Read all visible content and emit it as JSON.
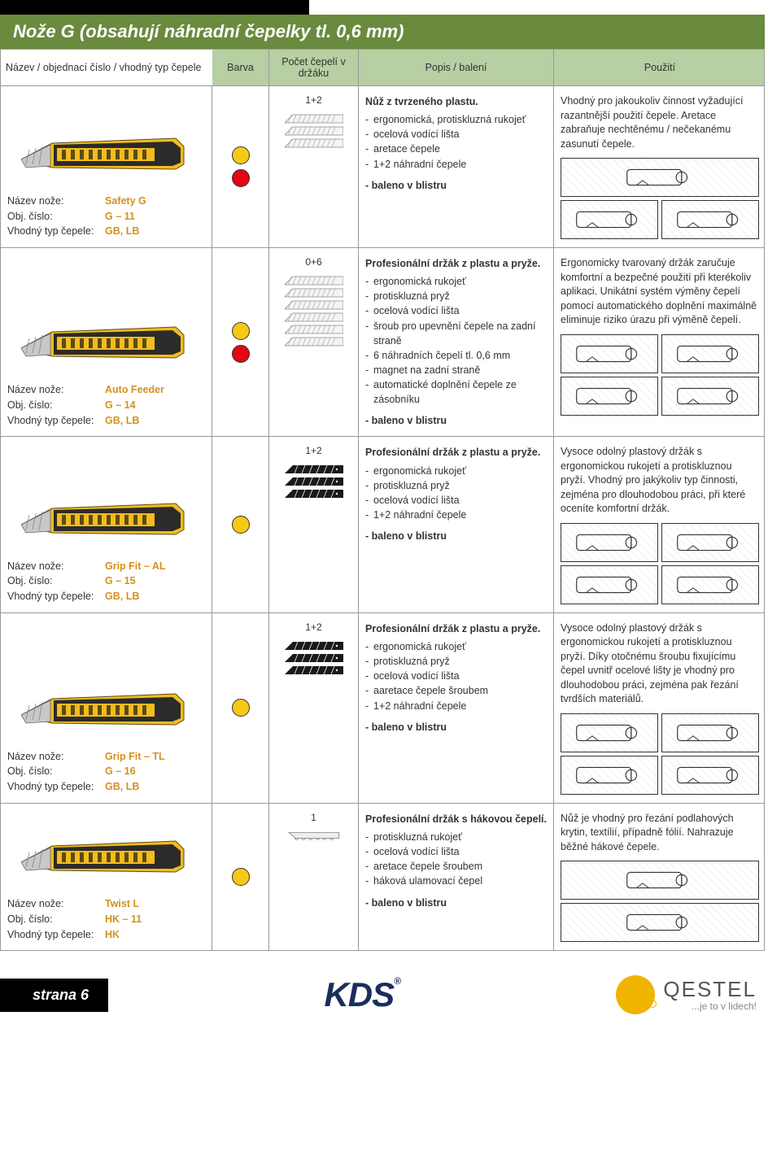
{
  "title": "Nože G (obsahují náhradní čepelky tl. 0,6 mm)",
  "headers": {
    "name": "Název / objednací číslo / vhodný typ čepele",
    "color": "Barva",
    "blades": "Počet čepelí v držáku",
    "desc": "Popis / balení",
    "use": "Použití"
  },
  "labels": {
    "name": "Název nože:",
    "code": "Obj. číslo:",
    "blade": "Vhodný typ čepele:"
  },
  "products": [
    {
      "name": "Safety G",
      "code": "G – 11",
      "bladeType": "GB, LB",
      "colors": [
        "#f6c915",
        "#e30613"
      ],
      "bladeCount": "1+2",
      "bladeStyle": "hatched",
      "bladeRows": 3,
      "descTitle": "Nůž z tvrzeného plastu.",
      "descItems": [
        "ergonomická, protiskluzná rukojeť",
        "ocelová vodící lišta",
        "aretace čepele",
        "1+2 náhradní čepele"
      ],
      "packed": "- baleno v blistru",
      "useText": "Vhodný pro jakoukoliv činnost vyžadující razantnější použití čepele. Aretace zabraňuje nechtěnému / nečekanému zasunutí čepele.",
      "diagramStyle": "one-two"
    },
    {
      "name": "Auto Feeder",
      "code": "G – 14",
      "bladeType": "GB, LB",
      "colors": [
        "#f6c915",
        "#e30613"
      ],
      "bladeCount": "0+6",
      "bladeStyle": "hatched",
      "bladeRows": 6,
      "descTitle": "Profesionální držák z plastu a pryže.",
      "descItems": [
        "ergonomická rukojeť",
        "protiskluzná pryž",
        "ocelová vodící lišta",
        "šroub pro upevnění čepele na zadní straně",
        "6 náhradních čepelí tl. 0,6 mm",
        "magnet na zadní straně",
        "automatické doplnění čepele ze zásobníku"
      ],
      "packed": "- baleno v blistru",
      "useText": "Ergonomicky tvarovaný držák zaručuje komfortní a bezpečné použití při kterékoliv aplikaci. Unikátní systém výměny čepelí pomocí automatického doplnění maximálně eliminuje riziko úrazu při výměně čepelí.",
      "diagramStyle": "two-two"
    },
    {
      "name": "Grip Fit – AL",
      "code": "G – 15",
      "bladeType": "GB, LB",
      "colors": [
        "#f6c915"
      ],
      "bladeCount": "1+2",
      "bladeStyle": "black",
      "bladeRows": 3,
      "descTitle": "Profesionální držák z plastu a pryže.",
      "descItems": [
        "ergonomická rukojeť",
        "protiskluzná pryž",
        "ocelová vodící lišta",
        "1+2 náhradní čepele"
      ],
      "packed": "- baleno v blistru",
      "useText": "Vysoce odolný plastový držák s ergonomickou rukojetí a protiskluznou pryží. Vhodný pro jakýkoliv typ činnosti, zejména pro dlouhodobou práci, při které oceníte komfortní držák.",
      "diagramStyle": "two-two"
    },
    {
      "name": "Grip Fit – TL",
      "code": "G – 16",
      "bladeType": "GB, LB",
      "colors": [
        "#f6c915"
      ],
      "bladeCount": "1+2",
      "bladeStyle": "black",
      "bladeRows": 3,
      "descTitle": "Profesionální držák z plastu a pryže.",
      "descItems": [
        "ergonomická rukojeť",
        "protiskluzná pryž",
        "ocelová vodící lišta",
        "aaretace čepele šroubem",
        "1+2 náhradní čepele"
      ],
      "packed": "- baleno v blistru",
      "useText": "Vysoce odolný plastový držák s ergonomickou rukojetí a protiskluznou pryží. Díky otočnému šroubu fixujícímu čepel uvnitř ocelové lišty je vhodný pro dlouhodobou práci, zejména pak řezání tvrdších materiálů.",
      "diagramStyle": "two-two"
    },
    {
      "name": "Twist L",
      "code": "HK – 11",
      "bladeType": "HK",
      "colors": [
        "#f6c915"
      ],
      "bladeCount": "1",
      "bladeStyle": "hook",
      "bladeRows": 1,
      "descTitle": "Profesionální držák s hákovou čepelí.",
      "descItems": [
        "protiskluzná rukojeť",
        "ocelová vodící lišta",
        "aretace čepele šroubem",
        "háková ulamovací čepel"
      ],
      "packed": "- baleno v blistru",
      "useText": "Nůž je vhodný pro řezání podlahových krytin, textílií, případně fólií. Nahrazuje běžné hákové čepele.",
      "diagramStyle": "one-one"
    }
  ],
  "footer": {
    "page": "strana 6",
    "brand1": "KDS",
    "brand2": "QESTEL",
    "brand2sub": "...je to v lidech!"
  },
  "palette": {
    "green": "#6a8a3e",
    "lightGreen": "#b7cfa3",
    "orange": "#d4901f",
    "yellow": "#f6c915",
    "red": "#e30613",
    "navy": "#1a2e5a"
  }
}
